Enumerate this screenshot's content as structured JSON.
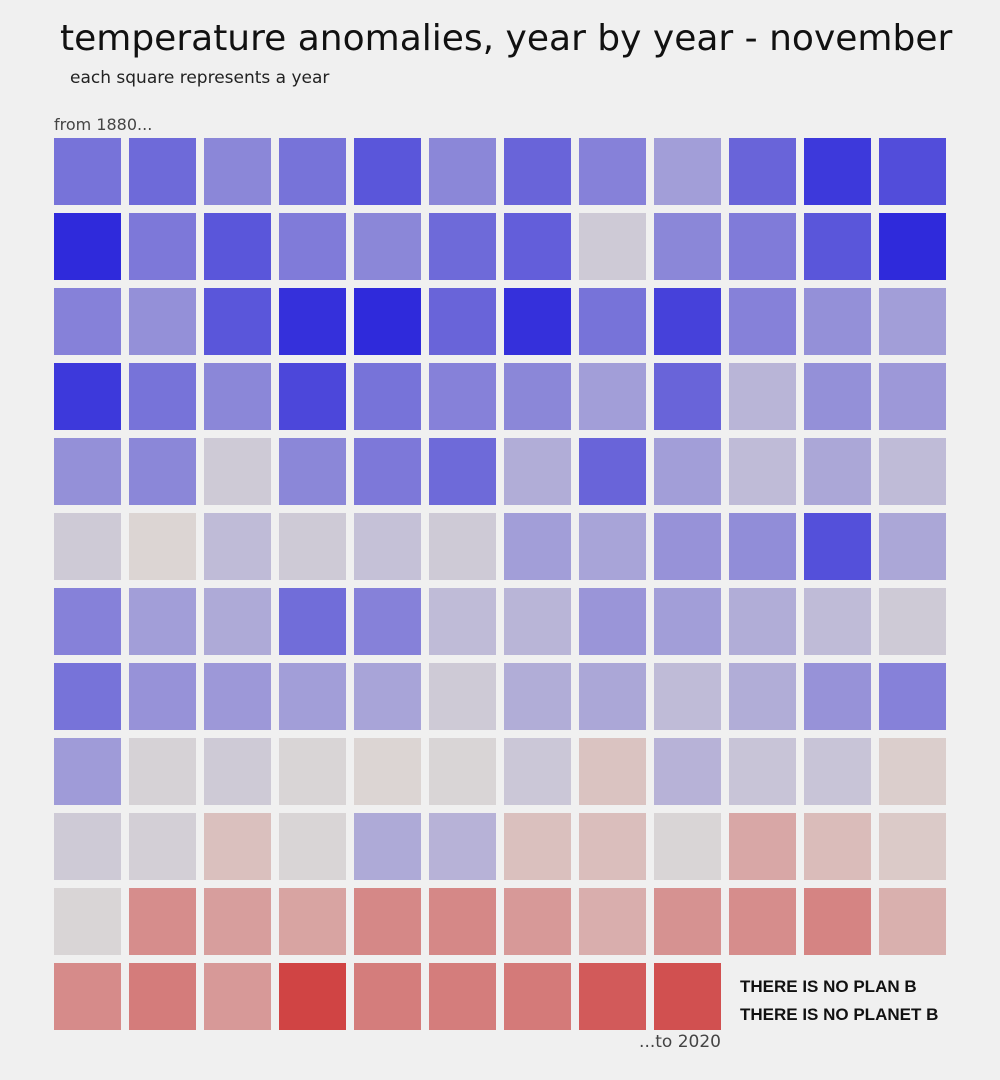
{
  "chart_data": {
    "type": "heatmap",
    "title": "temperature anomalies, year by year - november",
    "subtitle": "each square represents a year",
    "start_label": "from 1880...",
    "end_label": "...to 2020",
    "cold_color": "#2f2adb",
    "neutral_color": "#dcd8d6",
    "warm_color": "#cf3b3b",
    "scale_range": [
      -0.6,
      0.9
    ],
    "columns": 12,
    "years": [
      1880,
      2020
    ],
    "anomalies": [
      -0.35,
      -0.38,
      -0.28,
      -0.35,
      -0.45,
      -0.28,
      -0.4,
      -0.3,
      -0.2,
      -0.4,
      -0.55,
      -0.48,
      -0.6,
      -0.33,
      -0.45,
      -0.32,
      -0.28,
      -0.38,
      -0.42,
      -0.05,
      -0.28,
      -0.32,
      -0.45,
      -0.6,
      -0.3,
      -0.25,
      -0.45,
      -0.58,
      -0.6,
      -0.4,
      -0.58,
      -0.35,
      -0.52,
      -0.3,
      -0.25,
      -0.2,
      -0.55,
      -0.35,
      -0.28,
      -0.5,
      -0.35,
      -0.3,
      -0.28,
      -0.2,
      -0.4,
      -0.12,
      -0.25,
      -0.22,
      -0.25,
      -0.28,
      -0.05,
      -0.28,
      -0.33,
      -0.38,
      -0.15,
      -0.4,
      -0.2,
      -0.1,
      -0.17,
      -0.1,
      -0.05,
      0.02,
      -0.1,
      -0.05,
      -0.08,
      -0.05,
      -0.2,
      -0.18,
      -0.24,
      -0.26,
      -0.47,
      -0.17,
      -0.3,
      -0.2,
      -0.16,
      -0.37,
      -0.3,
      -0.1,
      -0.12,
      -0.23,
      -0.2,
      -0.15,
      -0.1,
      -0.05,
      -0.35,
      -0.24,
      -0.22,
      -0.2,
      -0.18,
      -0.05,
      -0.15,
      -0.17,
      -0.1,
      -0.15,
      -0.24,
      -0.3,
      -0.21,
      -0.02,
      -0.05,
      -0.01,
      0.02,
      -0.01,
      -0.06,
      0.12,
      -0.13,
      -0.07,
      -0.07,
      0.06,
      -0.05,
      -0.03,
      0.14,
      -0.01,
      -0.16,
      -0.13,
      0.14,
      0.15,
      -0.01,
      0.28,
      0.16,
      0.08,
      -0.01,
      0.43,
      0.33,
      0.3,
      0.46,
      0.46,
      0.36,
      0.24,
      0.4,
      0.43,
      0.48,
      0.23,
      0.44,
      0.53,
      0.36,
      0.85,
      0.52,
      0.52,
      0.54,
      0.72,
      0.78
    ]
  },
  "slogan": {
    "line1": "THERE IS NO PLAN B",
    "line2": "THERE IS NO PLANET B"
  }
}
